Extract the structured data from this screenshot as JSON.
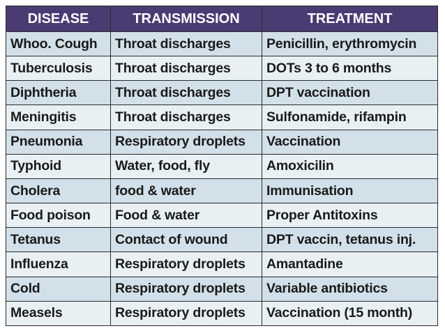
{
  "table": {
    "headers": [
      "DISEASE",
      "TRANSMISSION",
      "TREATMENT"
    ],
    "rows": [
      [
        "Whoo. Cough",
        "Throat discharges",
        "Penicillin, erythromycin"
      ],
      [
        "Tuberculosis",
        "Throat discharges",
        "DOTs 3 to 6 months"
      ],
      [
        "Diphtheria",
        "Throat discharges",
        "DPT vaccination"
      ],
      [
        "Meningitis",
        "Throat discharges",
        "Sulfonamide, rifampin"
      ],
      [
        "Pneumonia",
        "Respiratory droplets",
        "Vaccination"
      ],
      [
        "Typhoid",
        "Water, food, fly",
        "Amoxicilin"
      ],
      [
        "Cholera",
        "food & water",
        "Immunisation"
      ],
      [
        "Food poison",
        "Food & water",
        "Proper Antitoxins"
      ],
      [
        "Tetanus",
        "Contact of wound",
        "DPT vaccin, tetanus inj."
      ],
      [
        "Influenza",
        "Respiratory droplets",
        "Amantadine"
      ],
      [
        "Cold",
        "Respiratory droplets",
        "Variable antibiotics"
      ],
      [
        "Measels",
        "Respiratory droplets",
        "Vaccination (15 month)"
      ]
    ]
  },
  "colors": {
    "header_bg": "#4a3b73",
    "header_text": "#ffffff",
    "row_band_dark": "#d2e0e9",
    "row_band_light": "#e9f0f4",
    "border": "#2a2a2a"
  }
}
